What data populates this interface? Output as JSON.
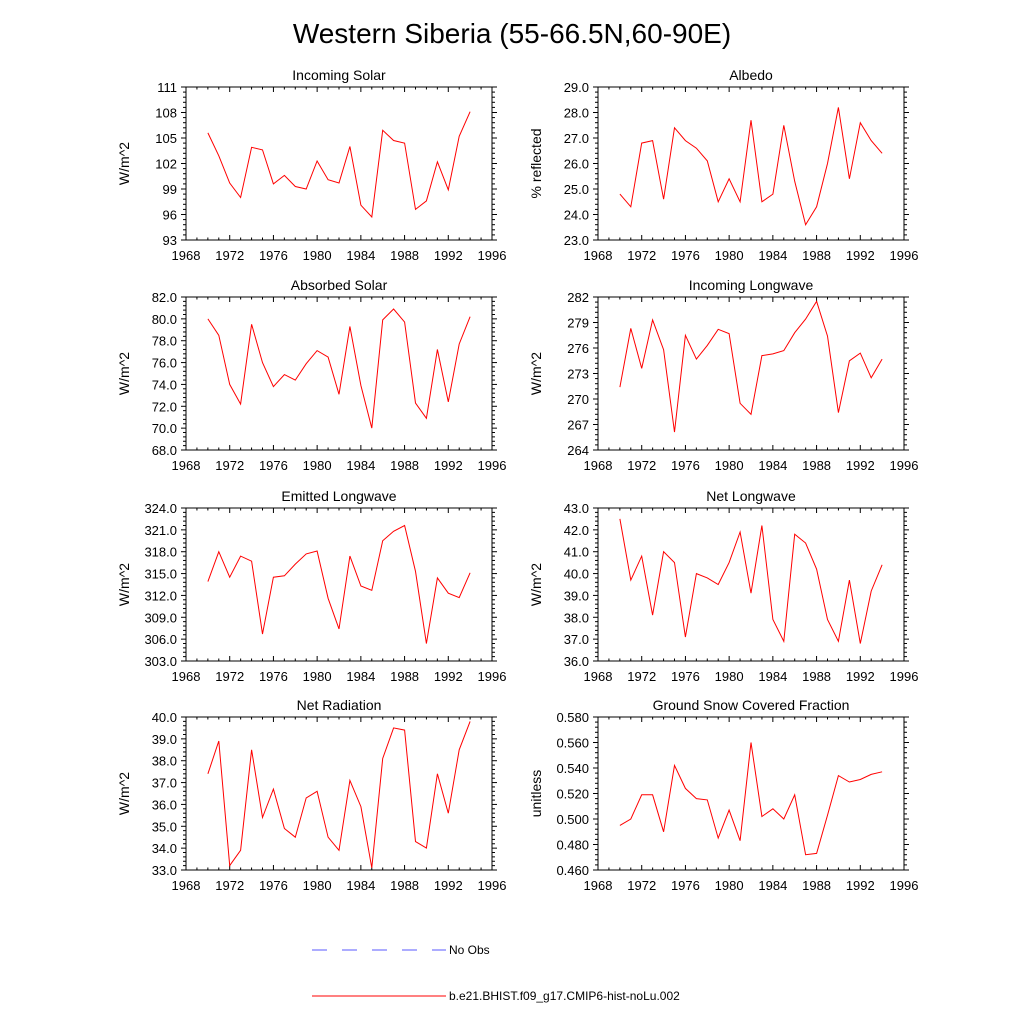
{
  "title": "Western Siberia (55-66.5N,60-90E)",
  "colors": {
    "model": "#ff0000",
    "obs": "#5a5aff",
    "axis": "#000000"
  },
  "legend": {
    "obs_label": "No Obs",
    "model_label": "b.e21.BHIST.f09_g17.CMIP6-hist-noLu.002"
  },
  "chart_data": [
    {
      "type": "line",
      "title": "Incoming Solar",
      "ylabel": "W/m^2",
      "xlim": [
        1968,
        1996
      ],
      "ylim": [
        93,
        111
      ],
      "xticks": [
        "1968",
        "1972",
        "1976",
        "1980",
        "1984",
        "1988",
        "1992",
        "1996"
      ],
      "yticks": [
        "93",
        "96",
        "99",
        "102",
        "105",
        "108",
        "111"
      ],
      "x": [
        1970,
        1971,
        1972,
        1973,
        1974,
        1975,
        1976,
        1977,
        1978,
        1979,
        1980,
        1981,
        1982,
        1983,
        1984,
        1985,
        1986,
        1987,
        1988,
        1989,
        1990,
        1991,
        1992,
        1993,
        1994
      ],
      "series": [
        {
          "name": "b.e21.BHIST.f09_g17.CMIP6-hist-noLu.002",
          "values": [
            105.6,
            102.9,
            99.7,
            98.0,
            103.9,
            103.6,
            99.6,
            100.6,
            99.3,
            99.0,
            102.3,
            100.1,
            99.7,
            104.0,
            97.1,
            95.7,
            105.9,
            104.7,
            104.4,
            96.6,
            97.6,
            102.2,
            98.9,
            105.2,
            108.1
          ]
        }
      ]
    },
    {
      "type": "line",
      "title": "Albedo",
      "ylabel": "% reflected",
      "xlim": [
        1968,
        1996
      ],
      "ylim": [
        23.0,
        29.0
      ],
      "xticks": [
        "1968",
        "1972",
        "1976",
        "1980",
        "1984",
        "1988",
        "1992",
        "1996"
      ],
      "yticks": [
        "23.0",
        "24.0",
        "25.0",
        "26.0",
        "27.0",
        "28.0",
        "29.0"
      ],
      "x": [
        1970,
        1971,
        1972,
        1973,
        1974,
        1975,
        1976,
        1977,
        1978,
        1979,
        1980,
        1981,
        1982,
        1983,
        1984,
        1985,
        1986,
        1987,
        1988,
        1989,
        1990,
        1991,
        1992,
        1993,
        1994
      ],
      "series": [
        {
          "name": "b.e21.BHIST.f09_g17.CMIP6-hist-noLu.002",
          "values": [
            24.8,
            24.3,
            26.8,
            26.9,
            24.6,
            27.4,
            26.9,
            26.6,
            26.1,
            24.5,
            25.4,
            24.5,
            27.7,
            24.5,
            24.8,
            27.5,
            25.3,
            23.6,
            24.3,
            26.0,
            28.2,
            25.4,
            27.6,
            26.9,
            26.4
          ]
        }
      ]
    },
    {
      "type": "line",
      "title": "Absorbed Solar",
      "ylabel": "W/m^2",
      "xlim": [
        1968,
        1996
      ],
      "ylim": [
        68.0,
        82.0
      ],
      "xticks": [
        "1968",
        "1972",
        "1976",
        "1980",
        "1984",
        "1988",
        "1992",
        "1996"
      ],
      "yticks": [
        "68.0",
        "70.0",
        "72.0",
        "74.0",
        "76.0",
        "78.0",
        "80.0",
        "82.0"
      ],
      "x": [
        1970,
        1971,
        1972,
        1973,
        1974,
        1975,
        1976,
        1977,
        1978,
        1979,
        1980,
        1981,
        1982,
        1983,
        1984,
        1985,
        1986,
        1987,
        1988,
        1989,
        1990,
        1991,
        1992,
        1993,
        1994
      ],
      "series": [
        {
          "name": "b.e21.BHIST.f09_g17.CMIP6-hist-noLu.002",
          "values": [
            80.0,
            78.5,
            74.0,
            72.2,
            79.5,
            76.0,
            73.8,
            74.9,
            74.4,
            75.9,
            77.1,
            76.5,
            73.1,
            79.3,
            73.9,
            70.0,
            79.9,
            80.9,
            79.7,
            72.3,
            70.9,
            77.2,
            72.4,
            77.7,
            80.2
          ]
        }
      ]
    },
    {
      "type": "line",
      "title": "Incoming Longwave",
      "ylabel": "W/m^2",
      "xlim": [
        1968,
        1996
      ],
      "ylim": [
        264,
        282
      ],
      "xticks": [
        "1968",
        "1972",
        "1976",
        "1980",
        "1984",
        "1988",
        "1992",
        "1996"
      ],
      "yticks": [
        "264",
        "267",
        "270",
        "273",
        "276",
        "279",
        "282"
      ],
      "x": [
        1970,
        1971,
        1972,
        1973,
        1974,
        1975,
        1976,
        1977,
        1978,
        1979,
        1980,
        1981,
        1982,
        1983,
        1984,
        1985,
        1986,
        1987,
        1988,
        1989,
        1990,
        1991,
        1992,
        1993,
        1994
      ],
      "series": [
        {
          "name": "b.e21.BHIST.f09_g17.CMIP6-hist-noLu.002",
          "values": [
            271.4,
            278.3,
            273.6,
            279.3,
            275.8,
            266.1,
            277.5,
            274.7,
            276.3,
            278.2,
            277.7,
            269.5,
            268.2,
            275.1,
            275.3,
            275.7,
            277.8,
            279.4,
            281.5,
            277.4,
            268.4,
            274.5,
            275.4,
            272.5,
            274.7
          ]
        }
      ]
    },
    {
      "type": "line",
      "title": "Emitted Longwave",
      "ylabel": "W/m^2",
      "xlim": [
        1968,
        1996
      ],
      "ylim": [
        303.0,
        324.0
      ],
      "xticks": [
        "1968",
        "1972",
        "1976",
        "1980",
        "1984",
        "1988",
        "1992",
        "1996"
      ],
      "yticks": [
        "303.0",
        "306.0",
        "309.0",
        "312.0",
        "315.0",
        "318.0",
        "321.0",
        "324.0"
      ],
      "x": [
        1970,
        1971,
        1972,
        1973,
        1974,
        1975,
        1976,
        1977,
        1978,
        1979,
        1980,
        1981,
        1982,
        1983,
        1984,
        1985,
        1986,
        1987,
        1988,
        1989,
        1990,
        1991,
        1992,
        1993,
        1994
      ],
      "series": [
        {
          "name": "b.e21.BHIST.f09_g17.CMIP6-hist-noLu.002",
          "values": [
            313.9,
            318.0,
            314.5,
            317.4,
            316.7,
            306.7,
            314.5,
            314.7,
            316.3,
            317.7,
            318.1,
            311.6,
            307.4,
            317.4,
            313.3,
            312.7,
            319.5,
            320.8,
            321.6,
            315.3,
            305.4,
            314.4,
            312.3,
            311.7,
            315.1
          ]
        }
      ]
    },
    {
      "type": "line",
      "title": "Net Longwave",
      "ylabel": "W/m^2",
      "xlim": [
        1968,
        1996
      ],
      "ylim": [
        36.0,
        43.0
      ],
      "xticks": [
        "1968",
        "1972",
        "1976",
        "1980",
        "1984",
        "1988",
        "1992",
        "1996"
      ],
      "yticks": [
        "36.0",
        "37.0",
        "38.0",
        "39.0",
        "40.0",
        "41.0",
        "42.0",
        "43.0"
      ],
      "x": [
        1970,
        1971,
        1972,
        1973,
        1974,
        1975,
        1976,
        1977,
        1978,
        1979,
        1980,
        1981,
        1982,
        1983,
        1984,
        1985,
        1986,
        1987,
        1988,
        1989,
        1990,
        1991,
        1992,
        1993,
        1994
      ],
      "series": [
        {
          "name": "b.e21.BHIST.f09_g17.CMIP6-hist-noLu.002",
          "values": [
            42.5,
            39.7,
            40.8,
            38.1,
            41.0,
            40.5,
            37.1,
            40.0,
            39.8,
            39.5,
            40.5,
            41.9,
            39.1,
            42.2,
            37.9,
            36.9,
            41.8,
            41.4,
            40.2,
            37.9,
            36.9,
            39.7,
            36.8,
            39.2,
            40.4
          ]
        }
      ]
    },
    {
      "type": "line",
      "title": "Net Radiation",
      "ylabel": "W/m^2",
      "xlim": [
        1968,
        1996
      ],
      "ylim": [
        33.0,
        40.0
      ],
      "xticks": [
        "1968",
        "1972",
        "1976",
        "1980",
        "1984",
        "1988",
        "1992",
        "1996"
      ],
      "yticks": [
        "33.0",
        "34.0",
        "35.0",
        "36.0",
        "37.0",
        "38.0",
        "39.0",
        "40.0"
      ],
      "x": [
        1970,
        1971,
        1972,
        1973,
        1974,
        1975,
        1976,
        1977,
        1978,
        1979,
        1980,
        1981,
        1982,
        1983,
        1984,
        1985,
        1986,
        1987,
        1988,
        1989,
        1990,
        1991,
        1992,
        1993,
        1994
      ],
      "series": [
        {
          "name": "b.e21.BHIST.f09_g17.CMIP6-hist-noLu.002",
          "values": [
            37.4,
            38.9,
            33.2,
            33.9,
            38.5,
            35.4,
            36.7,
            34.9,
            34.5,
            36.3,
            36.6,
            34.5,
            33.9,
            37.1,
            35.9,
            33.1,
            38.1,
            39.5,
            39.4,
            34.3,
            34.0,
            37.4,
            35.6,
            38.5,
            39.8
          ]
        }
      ]
    },
    {
      "type": "line",
      "title": "Ground Snow Covered Fraction",
      "ylabel": "unitless",
      "xlim": [
        1968,
        1996
      ],
      "ylim": [
        0.46,
        0.58
      ],
      "xticks": [
        "1968",
        "1972",
        "1976",
        "1980",
        "1984",
        "1988",
        "1992",
        "1996"
      ],
      "yticks": [
        "0.460",
        "0.480",
        "0.500",
        "0.520",
        "0.540",
        "0.560",
        "0.580"
      ],
      "x": [
        1970,
        1971,
        1972,
        1973,
        1974,
        1975,
        1976,
        1977,
        1978,
        1979,
        1980,
        1981,
        1982,
        1983,
        1984,
        1985,
        1986,
        1987,
        1988,
        1989,
        1990,
        1991,
        1992,
        1993,
        1994
      ],
      "series": [
        {
          "name": "b.e21.BHIST.f09_g17.CMIP6-hist-noLu.002",
          "values": [
            0.495,
            0.5,
            0.519,
            0.519,
            0.49,
            0.542,
            0.524,
            0.516,
            0.515,
            0.485,
            0.507,
            0.483,
            0.56,
            0.502,
            0.508,
            0.5,
            0.519,
            0.472,
            0.473,
            0.503,
            0.534,
            0.529,
            0.531,
            0.535,
            0.537
          ]
        }
      ]
    }
  ]
}
